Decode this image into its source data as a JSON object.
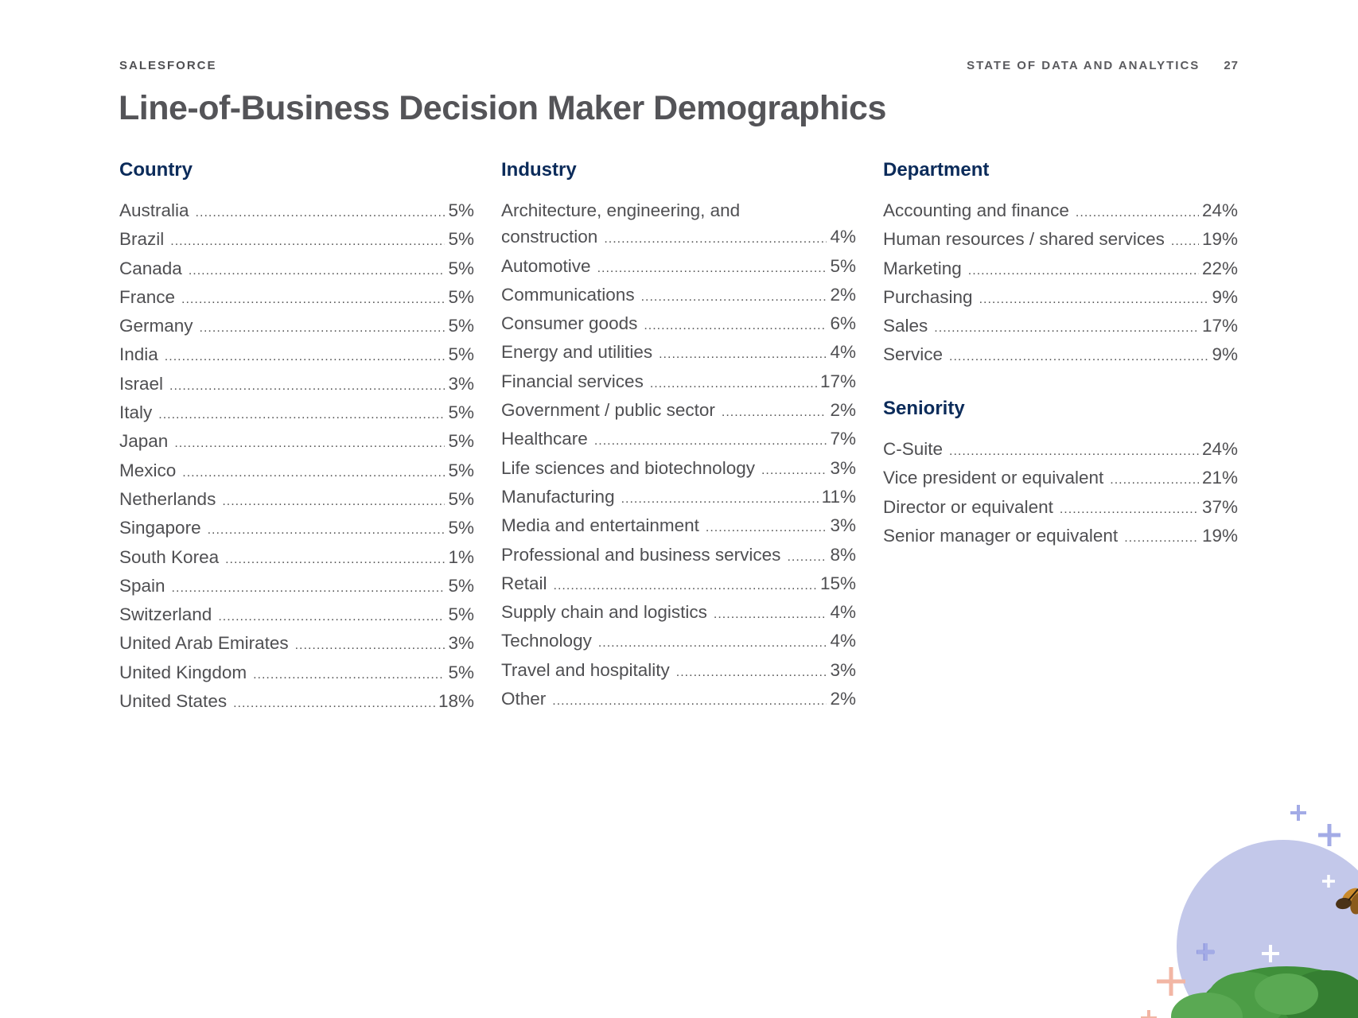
{
  "header": {
    "brand": "SALESFORCE",
    "report": "STATE OF DATA AND ANALYTICS",
    "page": "27"
  },
  "title": "Line-of-Business Decision Maker Demographics",
  "country": {
    "heading": "Country",
    "rows": [
      {
        "label": "Australia",
        "value": "5%"
      },
      {
        "label": "Brazil",
        "value": "5%"
      },
      {
        "label": "Canada",
        "value": "5%"
      },
      {
        "label": "France",
        "value": "5%"
      },
      {
        "label": "Germany",
        "value": "5%"
      },
      {
        "label": "India",
        "value": "5%"
      },
      {
        "label": "Israel",
        "value": "3%"
      },
      {
        "label": "Italy",
        "value": "5%"
      },
      {
        "label": "Japan",
        "value": "5%"
      },
      {
        "label": "Mexico",
        "value": "5%"
      },
      {
        "label": "Netherlands",
        "value": "5%"
      },
      {
        "label": "Singapore",
        "value": "5%"
      },
      {
        "label": "South Korea",
        "value": "1%"
      },
      {
        "label": "Spain",
        "value": "5%"
      },
      {
        "label": "Switzerland",
        "value": "5%"
      },
      {
        "label": "United Arab Emirates",
        "value": "3%"
      },
      {
        "label": "United Kingdom",
        "value": "5%"
      },
      {
        "label": "United States",
        "value": "18%"
      }
    ]
  },
  "industry": {
    "heading": "Industry",
    "first_line": "Architecture, engineering, and",
    "rows": [
      {
        "label": "construction",
        "value": "4%"
      },
      {
        "label": "Automotive",
        "value": "5%"
      },
      {
        "label": "Communications",
        "value": "2%"
      },
      {
        "label": "Consumer goods",
        "value": "6%"
      },
      {
        "label": "Energy and utilities",
        "value": "4%"
      },
      {
        "label": "Financial services",
        "value": "17%"
      },
      {
        "label": "Government / public sector",
        "value": "2%"
      },
      {
        "label": "Healthcare",
        "value": "7%"
      },
      {
        "label": "Life sciences and biotechnology",
        "value": "3%"
      },
      {
        "label": "Manufacturing",
        "value": "11%"
      },
      {
        "label": "Media and entertainment",
        "value": "3%"
      },
      {
        "label": "Professional and business services",
        "value": "8%"
      },
      {
        "label": "Retail",
        "value": "15%"
      },
      {
        "label": "Supply chain and logistics",
        "value": "4%"
      },
      {
        "label": "Technology",
        "value": "4%"
      },
      {
        "label": "Travel and hospitality",
        "value": "3%"
      },
      {
        "label": "Other",
        "value": "2%"
      }
    ]
  },
  "department": {
    "heading": "Department",
    "rows": [
      {
        "label": "Accounting and finance",
        "value": "24%"
      },
      {
        "label": "Human resources / shared services",
        "value": "19%"
      },
      {
        "label": "Marketing",
        "value": "22%"
      },
      {
        "label": "Purchasing",
        "value": "9%"
      },
      {
        "label": "Sales",
        "value": "17%"
      },
      {
        "label": "Service",
        "value": "9%"
      }
    ]
  },
  "seniority": {
    "heading": "Seniority",
    "rows": [
      {
        "label": "C-Suite",
        "value": "24%"
      },
      {
        "label": "Vice president or equivalent",
        "value": "21%"
      },
      {
        "label": "Director or equivalent",
        "value": "37%"
      },
      {
        "label": "Senior manager or equivalent",
        "value": "19%"
      }
    ]
  },
  "decoration": {
    "circle_color": "#c3c8ea",
    "tree_color": "#3f8f3a",
    "plus_color": "#a3abe6",
    "plus_accent_color": "#f2b6a4",
    "icon": "butterfly-icon"
  }
}
